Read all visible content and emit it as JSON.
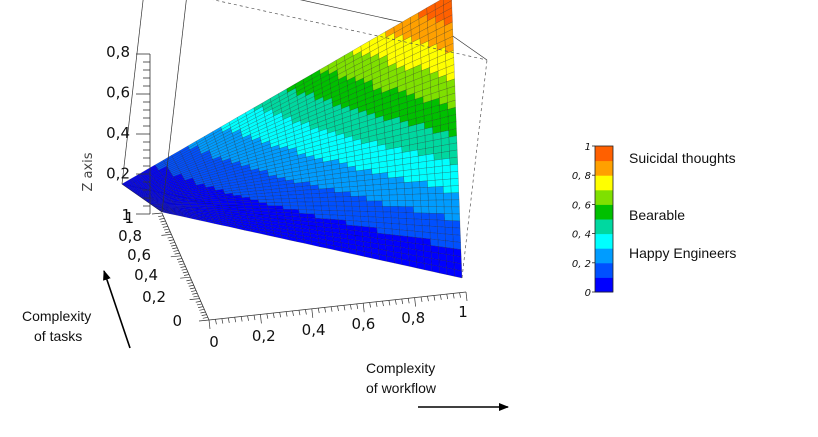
{
  "chart_data": {
    "type": "surface",
    "function": "z = x * y",
    "x": {
      "label": "",
      "range": [
        0,
        1
      ],
      "ticks": [
        "0",
        "0,2",
        "0,4",
        "0,6",
        "0,8",
        "1"
      ]
    },
    "y": {
      "label": "",
      "range": [
        0,
        1
      ],
      "ticks": [
        "0",
        "0,2",
        "0,4",
        "0,6",
        "0,8",
        "1"
      ]
    },
    "z": {
      "label": "Z axis",
      "range": [
        0,
        0.85
      ],
      "ticks": [
        "0,2",
        "0,4",
        "0,6",
        "0,8"
      ],
      "base_tick": "1"
    },
    "grid_resolution": 40,
    "colormap": {
      "stops": [
        {
          "value": 0.0,
          "color": "#0000ff"
        },
        {
          "value": 0.1,
          "color": "#0050ff"
        },
        {
          "value": 0.2,
          "color": "#009cff"
        },
        {
          "value": 0.3,
          "color": "#00ffff"
        },
        {
          "value": 0.4,
          "color": "#00d8a0"
        },
        {
          "value": 0.5,
          "color": "#00c000"
        },
        {
          "value": 0.6,
          "color": "#7fe000"
        },
        {
          "value": 0.7,
          "color": "#ffff00"
        },
        {
          "value": 0.8,
          "color": "#ffa000"
        },
        {
          "value": 0.9,
          "color": "#ff6000"
        },
        {
          "value": 1.0,
          "color": "#ff0000"
        }
      ],
      "ticks": [
        "0",
        "0, 2",
        "0, 4",
        "0, 6",
        "0, 8",
        "1"
      ]
    },
    "legend_labels": [
      {
        "text": "Suicidal thoughts",
        "at": 0.9
      },
      {
        "text": "Bearable",
        "at": 0.55
      },
      {
        "text": "Happy Engineers",
        "at": 0.28
      }
    ]
  },
  "annotations": {
    "tasks_line1": "Complexity",
    "tasks_line2": "of tasks",
    "workflow_line1": "Complexity",
    "workflow_line2": "of workflow"
  }
}
